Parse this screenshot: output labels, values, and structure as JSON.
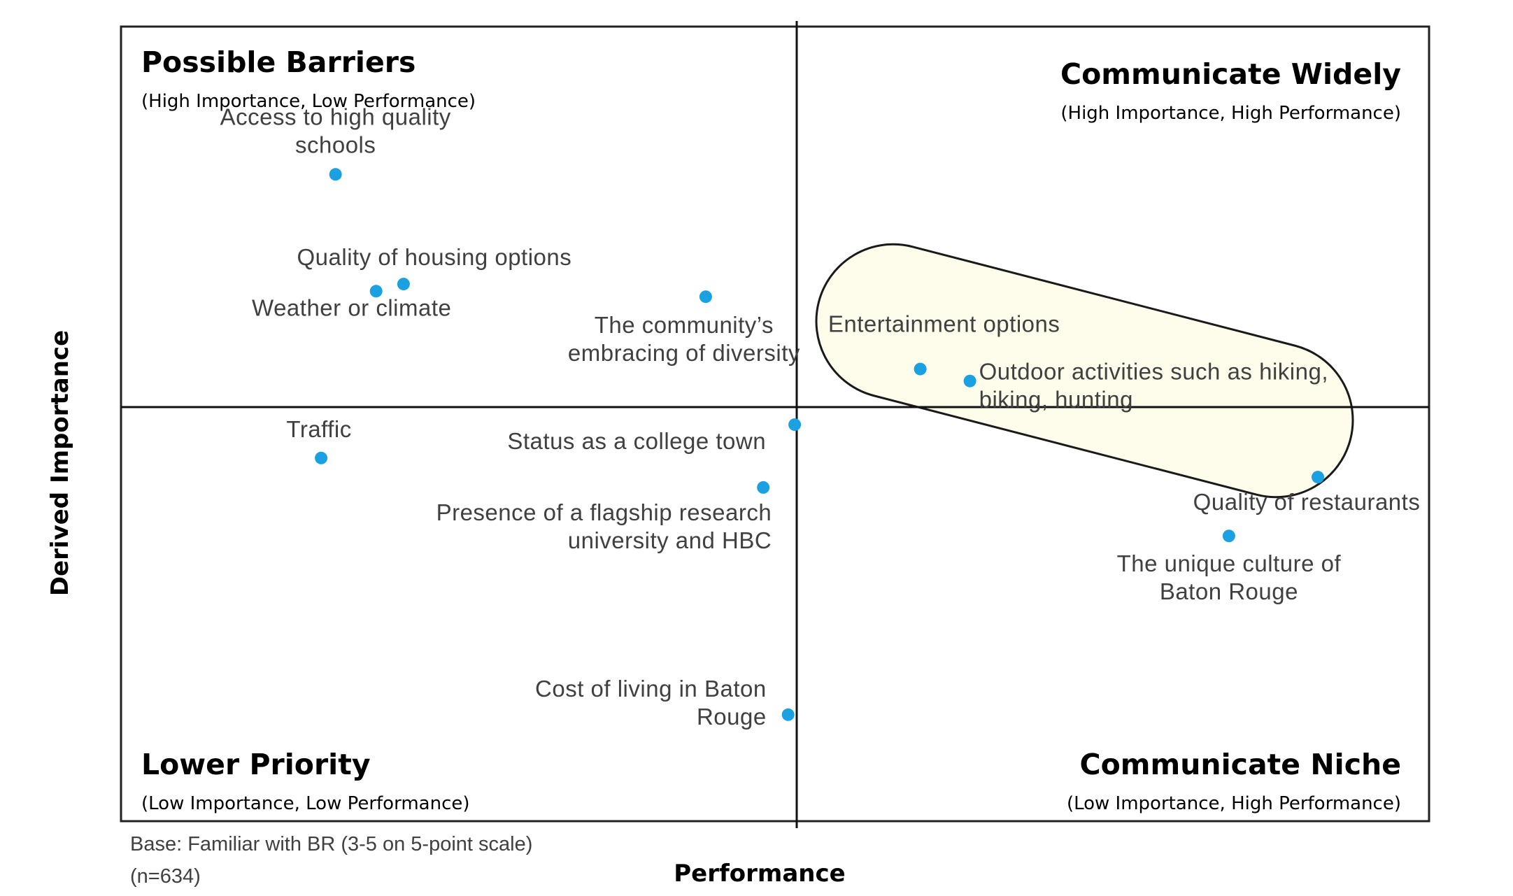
{
  "chart_data": {
    "type": "scatter",
    "xlabel": "Performance",
    "ylabel": "Derived Importance",
    "xlim": [
      0,
      100
    ],
    "ylim": [
      0,
      100
    ],
    "midpoint": {
      "x": 50.7,
      "y": 52.1
    },
    "grid": false,
    "point_color": "#1BA1E2",
    "highlight_fill": "#FEFDEB",
    "quadrants": [
      {
        "title": "Possible Barriers",
        "subtitle": "(High Importance, Low Performance)"
      },
      {
        "title": "Communicate Widely",
        "subtitle": "(High Importance, High Performance)"
      },
      {
        "title": "Lower Priority",
        "subtitle": "(Low Importance, Low Performance)"
      },
      {
        "title": "Communicate Niche",
        "subtitle": "(Low Importance, High Performance)"
      }
    ],
    "points": [
      {
        "label": [
          "Access to high quality",
          "schools"
        ],
        "x": 16.4,
        "y": 81.4
      },
      {
        "label": [
          "Quality of housing options"
        ],
        "x": 21.6,
        "y": 67.6
      },
      {
        "label": [
          "Weather or climate"
        ],
        "x": 19.5,
        "y": 66.7
      },
      {
        "label": [
          "The community’s",
          "embracing of diversity"
        ],
        "x": 44.7,
        "y": 66.0
      },
      {
        "label": [
          "Entertainment options"
        ],
        "x": 61.1,
        "y": 56.9
      },
      {
        "label": [
          "Outdoor activities such as hiking,",
          "biking, hunting"
        ],
        "x": 64.9,
        "y": 55.4
      },
      {
        "label": [
          "Traffic"
        ],
        "x": 15.3,
        "y": 45.7
      },
      {
        "label": [
          "Status as a college town"
        ],
        "x": 51.5,
        "y": 49.9
      },
      {
        "label": [
          "Presence of a flagship research",
          "university and HBC"
        ],
        "x": 49.1,
        "y": 42.0
      },
      {
        "label": [
          "Quality of restaurants"
        ],
        "x": 91.5,
        "y": 43.3
      },
      {
        "label": [
          "The unique culture of",
          "Baton Rouge"
        ],
        "x": 84.7,
        "y": 35.9
      },
      {
        "label": [
          "Cost of living in Baton",
          "Rouge"
        ],
        "x": 51.0,
        "y": 13.4
      }
    ],
    "base_note": [
      "Base: Familiar with BR (3-5 on 5-point scale)",
      "(n=634)"
    ]
  }
}
